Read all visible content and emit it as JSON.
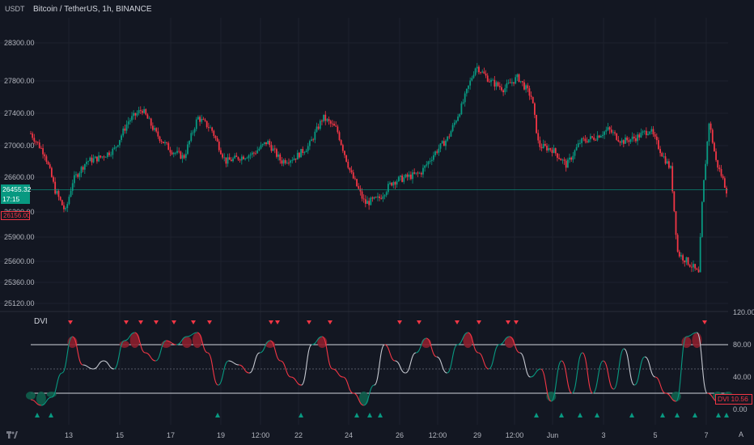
{
  "header": {
    "unit_label": "USDT",
    "symbol_title": "Bitcoin / TetherUS, 1h, BINANCE"
  },
  "price_pane": {
    "y_ticks": [
      "28300.00",
      "27800.00",
      "27400.00",
      "27000.00",
      "26600.00",
      "26200.00",
      "25900.00",
      "25600.00",
      "25360.00",
      "25120.00"
    ],
    "y_tick_values": [
      28300,
      27800,
      27400,
      27000,
      26600,
      26200,
      25900,
      25600,
      25360,
      25120
    ],
    "current_price": "26455.32",
    "countdown": "17:15",
    "low_label": "26156.00",
    "current_value": 26455.32
  },
  "indicator_pane": {
    "name": "DVI",
    "y_ticks": [
      "120.00",
      "80.00",
      "40.00",
      "0.00"
    ],
    "y_tick_values": [
      120,
      80,
      40,
      0
    ],
    "upper_band": 80,
    "mid_band": 50,
    "lower_band": 20,
    "badge_name": "DVI",
    "badge_value": "10.56"
  },
  "x_axis": {
    "labels": [
      "13",
      "15",
      "17",
      "19",
      "12:00",
      "22",
      "24",
      "26",
      "12:00",
      "29",
      "12:00",
      "Jun",
      "3",
      "5",
      "7"
    ]
  },
  "colors": {
    "background": "#131722",
    "up": "#089981",
    "down": "#f23645",
    "axis_text": "#b2b5be",
    "grid": "#1e222d",
    "band": "#d1d4dc"
  },
  "icons": {
    "logo": "tradingview-logo-icon",
    "auto_scale": "A"
  },
  "chart_data": [
    {
      "type": "candlestick",
      "title": "Bitcoin / TetherUS, 1h, BINANCE",
      "ylabel": "USDT",
      "ylim": [
        25120,
        28300
      ],
      "x_ticks": [
        "13",
        "15",
        "17",
        "19",
        "12:00",
        "22",
        "24",
        "26",
        "12:00",
        "29",
        "12:00",
        "Jun",
        "3",
        "5",
        "7"
      ],
      "close_path": [
        [
          0,
          27150
        ],
        [
          0.02,
          26900
        ],
        [
          0.035,
          26450
        ],
        [
          0.05,
          26200
        ],
        [
          0.06,
          26550
        ],
        [
          0.08,
          26800
        ],
        [
          0.1,
          26850
        ],
        [
          0.12,
          26950
        ],
        [
          0.14,
          27300
        ],
        [
          0.16,
          27450
        ],
        [
          0.18,
          27150
        ],
        [
          0.2,
          26950
        ],
        [
          0.22,
          26850
        ],
        [
          0.24,
          27350
        ],
        [
          0.26,
          27200
        ],
        [
          0.28,
          26800
        ],
        [
          0.3,
          26850
        ],
        [
          0.32,
          26900
        ],
        [
          0.34,
          27050
        ],
        [
          0.36,
          26800
        ],
        [
          0.38,
          26850
        ],
        [
          0.4,
          27000
        ],
        [
          0.42,
          27350
        ],
        [
          0.44,
          27200
        ],
        [
          0.46,
          26650
        ],
        [
          0.48,
          26300
        ],
        [
          0.5,
          26350
        ],
        [
          0.52,
          26550
        ],
        [
          0.54,
          26600
        ],
        [
          0.56,
          26650
        ],
        [
          0.58,
          26900
        ],
        [
          0.6,
          27100
        ],
        [
          0.62,
          27500
        ],
        [
          0.64,
          28000
        ],
        [
          0.66,
          27800
        ],
        [
          0.68,
          27700
        ],
        [
          0.7,
          27850
        ],
        [
          0.72,
          27600
        ],
        [
          0.73,
          27000
        ],
        [
          0.75,
          26950
        ],
        [
          0.77,
          26750
        ],
        [
          0.79,
          27050
        ],
        [
          0.81,
          27100
        ],
        [
          0.83,
          27200
        ],
        [
          0.85,
          27050
        ],
        [
          0.87,
          27100
        ],
        [
          0.89,
          27200
        ],
        [
          0.91,
          26850
        ],
        [
          0.92,
          26700
        ],
        [
          0.93,
          25700
        ],
        [
          0.95,
          25550
        ],
        [
          0.96,
          25450
        ],
        [
          0.965,
          26300
        ],
        [
          0.975,
          27300
        ],
        [
          0.985,
          26800
        ],
        [
          1.0,
          26455
        ]
      ],
      "last_price": 26455.32
    },
    {
      "type": "line",
      "title": "DVI",
      "ylim": [
        0,
        120
      ],
      "bands": [
        80,
        50,
        20
      ],
      "values": [
        12,
        5,
        15,
        45,
        90,
        55,
        50,
        60,
        50,
        85,
        95,
        70,
        60,
        85,
        80,
        90,
        95,
        70,
        30,
        60,
        55,
        45,
        70,
        85,
        60,
        40,
        30,
        80,
        90,
        50,
        40,
        20,
        5,
        30,
        80,
        60,
        45,
        70,
        88,
        65,
        45,
        80,
        95,
        70,
        50,
        80,
        90,
        70,
        40,
        50,
        10,
        60,
        20,
        70,
        20,
        60,
        25,
        75,
        30,
        65,
        40,
        20,
        10,
        90,
        95,
        20,
        10,
        10.56
      ],
      "last_value": 10.56,
      "sell_signal_count": 17,
      "buy_signal_count": 16
    }
  ]
}
